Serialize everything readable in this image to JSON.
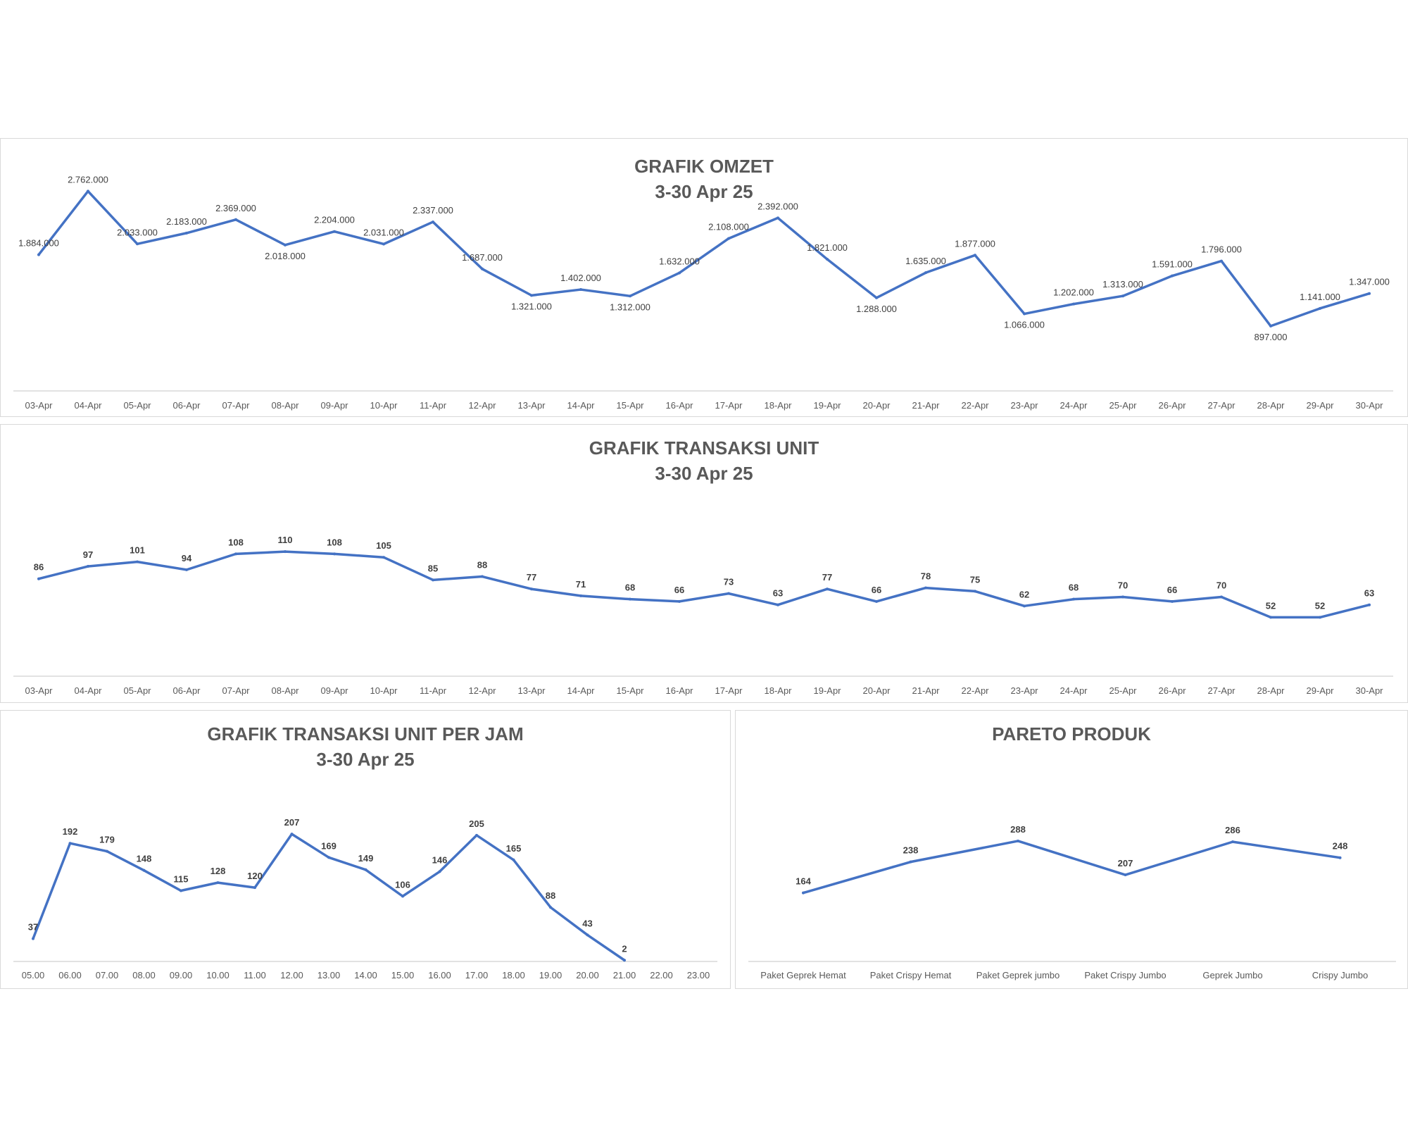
{
  "chart_data": [
    {
      "id": "omzet",
      "type": "line",
      "title": "GRAFIK OMZET",
      "subtitle": "3-30 Apr 25",
      "categories": [
        "03-Apr",
        "04-Apr",
        "05-Apr",
        "06-Apr",
        "07-Apr",
        "08-Apr",
        "09-Apr",
        "10-Apr",
        "11-Apr",
        "12-Apr",
        "13-Apr",
        "14-Apr",
        "15-Apr",
        "16-Apr",
        "17-Apr",
        "18-Apr",
        "19-Apr",
        "20-Apr",
        "21-Apr",
        "22-Apr",
        "23-Apr",
        "24-Apr",
        "25-Apr",
        "26-Apr",
        "27-Apr",
        "28-Apr",
        "29-Apr",
        "30-Apr"
      ],
      "values": [
        1884000,
        2762000,
        2033000,
        2183000,
        2369000,
        2018000,
        2204000,
        2031000,
        2337000,
        1687000,
        1321000,
        1402000,
        1312000,
        1632000,
        2108000,
        2392000,
        1821000,
        1288000,
        1635000,
        1877000,
        1066000,
        1202000,
        1313000,
        1591000,
        1796000,
        897000,
        1141000,
        1347000
      ],
      "labels": [
        "1.884.000",
        "2.762.000",
        "2.033.000",
        "2.183.000",
        "2.369.000",
        "2.018.000",
        "2.204.000",
        "2.031.000",
        "2.337.000",
        "1.687.000",
        "1.321.000",
        "1.402.000",
        "1.312.000",
        "1.632.000",
        "2.108.000",
        "2.392.000",
        "1.821.000",
        "1.288.000",
        "1.635.000",
        "1.877.000",
        "1.066.000",
        "1.202.000",
        "1.313.000",
        "1.591.000",
        "1.796.000",
        "897.000",
        "1.141.000",
        "1.347.000"
      ],
      "label_bold": false,
      "ylim": [
        0,
        3000000
      ],
      "grid": false,
      "color": "#4472C4"
    },
    {
      "id": "transaksi",
      "type": "line",
      "title": "GRAFIK TRANSAKSI UNIT",
      "subtitle": "3-30 Apr 25",
      "categories": [
        "03-Apr",
        "04-Apr",
        "05-Apr",
        "06-Apr",
        "07-Apr",
        "08-Apr",
        "09-Apr",
        "10-Apr",
        "11-Apr",
        "12-Apr",
        "13-Apr",
        "14-Apr",
        "15-Apr",
        "16-Apr",
        "17-Apr",
        "18-Apr",
        "19-Apr",
        "20-Apr",
        "21-Apr",
        "22-Apr",
        "23-Apr",
        "24-Apr",
        "25-Apr",
        "26-Apr",
        "27-Apr",
        "28-Apr",
        "29-Apr",
        "30-Apr"
      ],
      "values": [
        86,
        97,
        101,
        94,
        108,
        110,
        108,
        105,
        85,
        88,
        77,
        71,
        68,
        66,
        73,
        63,
        77,
        66,
        78,
        75,
        62,
        68,
        70,
        66,
        70,
        52,
        52,
        63
      ],
      "labels": [
        "86",
        "97",
        "101",
        "94",
        "108",
        "110",
        "108",
        "105",
        "85",
        "88",
        "77",
        "71",
        "68",
        "66",
        "73",
        "63",
        "77",
        "66",
        "78",
        "75",
        "62",
        "68",
        "70",
        "66",
        "70",
        "52",
        "52",
        "63"
      ],
      "label_bold": true,
      "ylim": [
        0,
        130
      ],
      "grid": false,
      "color": "#4472C4"
    },
    {
      "id": "per-jam",
      "type": "line",
      "title": "GRAFIK TRANSAKSI UNIT PER JAM",
      "subtitle": "3-30 Apr 25",
      "categories": [
        "05.00",
        "06.00",
        "07.00",
        "08.00",
        "09.00",
        "10.00",
        "11.00",
        "12.00",
        "13.00",
        "14.00",
        "15.00",
        "16.00",
        "17.00",
        "18.00",
        "19.00",
        "20.00",
        "21.00",
        "22.00",
        "23.00"
      ],
      "values": [
        37,
        192,
        179,
        148,
        115,
        128,
        120,
        207,
        169,
        149,
        106,
        146,
        205,
        165,
        88,
        43,
        2
      ],
      "labels": [
        "37",
        "192",
        "179",
        "148",
        "115",
        "128",
        "120",
        "207",
        "169",
        "149",
        "106",
        "146",
        "205",
        "165",
        "88",
        "43",
        "2"
      ],
      "label_bold": true,
      "ylim": [
        0,
        230
      ],
      "grid": false,
      "color": "#4472C4"
    },
    {
      "id": "pareto",
      "type": "line",
      "title": "PARETO PRODUK",
      "subtitle": "",
      "categories": [
        "Paket Geprek Hemat",
        "Paket Crispy Hemat",
        "Paket Geprek jumbo",
        "Paket Crispy Jumbo",
        "Geprek Jumbo",
        "Crispy Jumbo"
      ],
      "values": [
        164,
        238,
        288,
        207,
        286,
        248
      ],
      "labels": [
        "164",
        "238",
        "288",
        "207",
        "286",
        "248"
      ],
      "label_bold": true,
      "ylim": [
        0,
        330
      ],
      "grid": false,
      "color": "#4472C4"
    }
  ]
}
